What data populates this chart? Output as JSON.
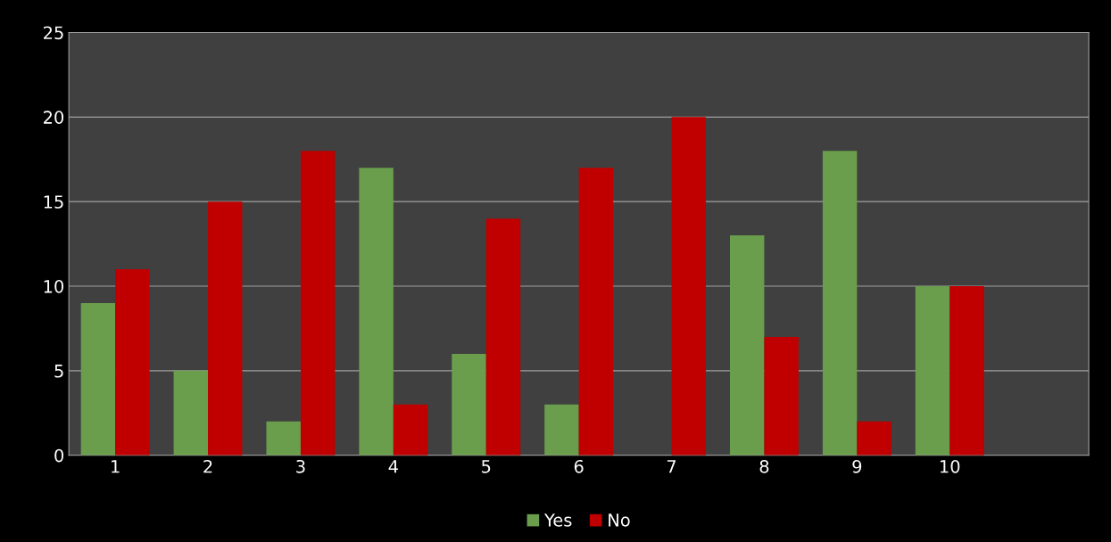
{
  "chart_data": {
    "type": "bar",
    "categories": [
      "1",
      "2",
      "3",
      "4",
      "5",
      "6",
      "7",
      "8",
      "9",
      "10",
      null
    ],
    "series": [
      {
        "name": "Yes",
        "color": "#6a9e4c",
        "values": [
          9,
          5,
          2,
          17,
          6,
          3,
          null,
          13,
          18,
          10,
          null
        ]
      },
      {
        "name": "No",
        "color": "#c00000",
        "values": [
          11,
          15,
          18,
          3,
          14,
          17,
          20,
          7,
          2,
          10,
          null
        ]
      }
    ],
    "ylim": [
      0,
      25
    ],
    "yticks": [
      0,
      5,
      10,
      15,
      20,
      25
    ],
    "grid": "y",
    "legend": "bottom"
  }
}
